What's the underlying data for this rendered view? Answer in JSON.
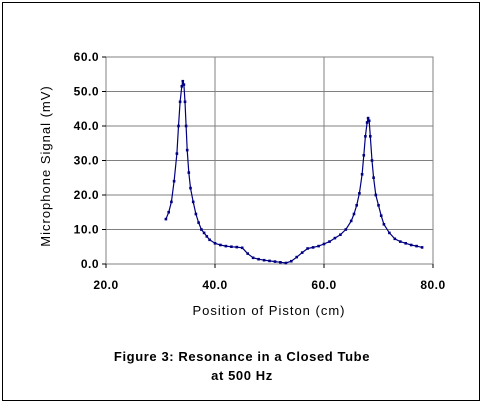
{
  "chart_data": {
    "type": "scatter",
    "title": "",
    "xlabel": "Position of Piston (cm)",
    "ylabel": "Microphone Signal (mV)",
    "xlim": [
      20.0,
      80.0
    ],
    "ylim": [
      0.0,
      60.0
    ],
    "xticks": [
      "20.0",
      "40.0",
      "60.0",
      "80.0"
    ],
    "yticks": [
      "0.0",
      "10.0",
      "20.0",
      "30.0",
      "40.0",
      "50.0",
      "60.0"
    ],
    "grid": true,
    "legend": "none",
    "series": [
      {
        "color": "#000080",
        "style": "line-with-markers",
        "x": [
          31.0,
          31.5,
          32.0,
          32.5,
          33.0,
          33.3,
          33.6,
          33.9,
          34.1,
          34.3,
          34.5,
          34.7,
          34.9,
          35.2,
          35.5,
          36.0,
          36.5,
          37.0,
          37.5,
          38.0,
          38.5,
          39.0,
          40.0,
          41.0,
          42.0,
          43.0,
          44.0,
          45.0,
          46.0,
          47.0,
          48.0,
          49.0,
          50.0,
          51.0,
          52.0,
          53.0,
          54.0,
          55.0,
          56.0,
          57.0,
          58.0,
          59.0,
          60.0,
          61.0,
          62.0,
          63.0,
          64.0,
          65.0,
          65.5,
          66.0,
          66.5,
          67.0,
          67.3,
          67.6,
          67.9,
          68.1,
          68.3,
          68.5,
          68.8,
          69.1,
          69.5,
          70.0,
          70.5,
          71.0,
          72.0,
          73.0,
          74.0,
          75.0,
          76.0,
          77.0,
          78.0
        ],
        "y": [
          13.0,
          15.0,
          18.0,
          24.0,
          32.0,
          40.0,
          47.0,
          51.5,
          53.0,
          52.0,
          47.0,
          40.0,
          33.0,
          26.5,
          22.0,
          18.0,
          14.5,
          12.0,
          10.0,
          9.0,
          8.0,
          7.0,
          6.0,
          5.5,
          5.2,
          5.0,
          4.9,
          4.7,
          3.0,
          1.8,
          1.4,
          1.1,
          0.9,
          0.7,
          0.5,
          0.3,
          0.8,
          2.0,
          3.3,
          4.5,
          4.8,
          5.2,
          5.8,
          6.5,
          7.5,
          8.5,
          10.0,
          12.5,
          14.5,
          17.0,
          20.5,
          26.0,
          31.5,
          37.0,
          41.0,
          42.3,
          41.5,
          37.0,
          30.0,
          25.0,
          20.0,
          17.0,
          14.0,
          11.5,
          9.0,
          7.3,
          6.5,
          6.0,
          5.5,
          5.2,
          4.8
        ]
      }
    ]
  },
  "caption": {
    "line1": "Figure 3: Resonance in a Closed Tube",
    "line2": "at 500 Hz"
  }
}
